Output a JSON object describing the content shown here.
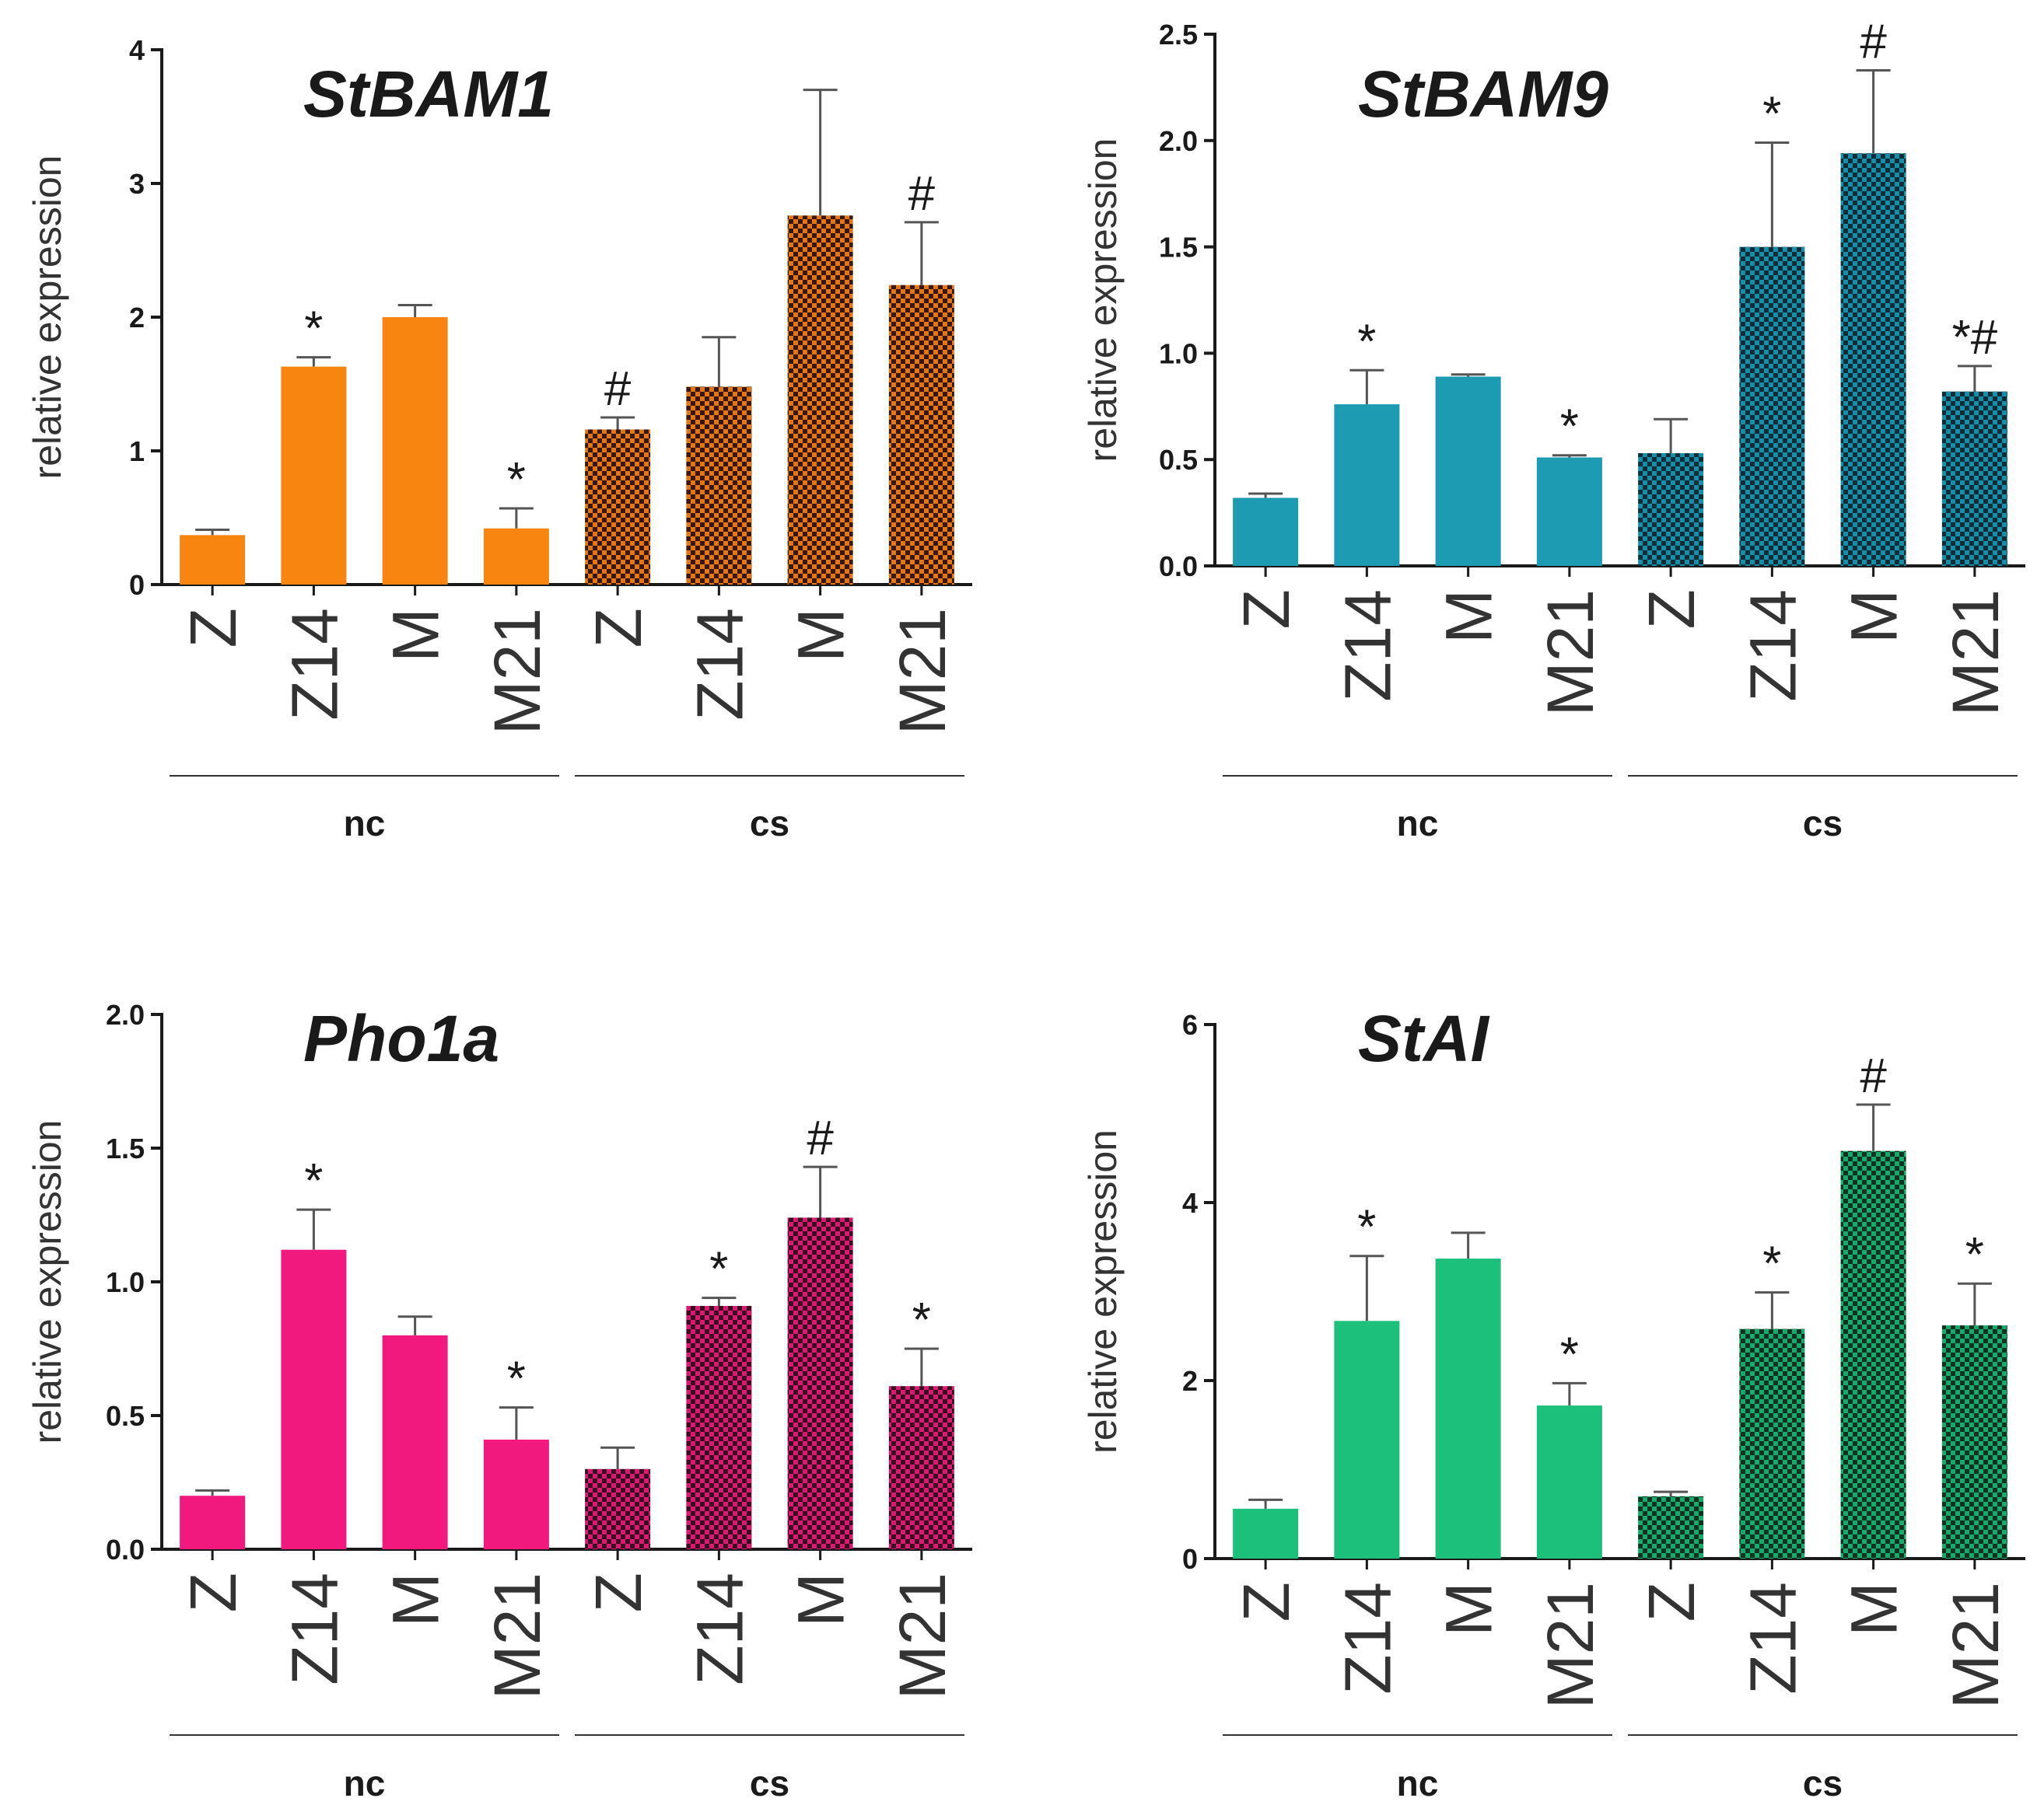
{
  "chart_data": [
    {
      "type": "bar",
      "title": "StBAM1",
      "ylabel": "relative expression",
      "ylim": [
        0,
        4
      ],
      "yticks": [
        "0",
        "1",
        "2",
        "3",
        "4"
      ],
      "categories": [
        "Z",
        "Z14",
        "M",
        "M21",
        "Z",
        "Z14",
        "M",
        "M21"
      ],
      "groups": [
        {
          "label": "nc",
          "span": [
            0,
            3
          ]
        },
        {
          "label": "cs",
          "span": [
            4,
            7
          ]
        }
      ],
      "values": [
        0.37,
        1.63,
        2.0,
        0.42,
        1.16,
        1.48,
        2.76,
        2.24
      ],
      "errors": [
        0.04,
        0.07,
        0.09,
        0.15,
        0.09,
        0.37,
        0.94,
        0.47
      ],
      "annotations": [
        "",
        "*",
        "",
        "*",
        "#",
        "",
        "",
        "#"
      ],
      "colors": {
        "nc": "#f7850f",
        "cs_fill": "#e0771a",
        "cs_check": "#3a1808"
      }
    },
    {
      "type": "bar",
      "title": "StBAM9",
      "ylabel": "relative expression",
      "ylim": [
        0,
        2.5
      ],
      "yticks": [
        "0.0",
        "0.5",
        "1.0",
        "1.5",
        "2.0",
        "2.5"
      ],
      "categories": [
        "Z",
        "Z14",
        "M",
        "M21",
        "Z",
        "Z14",
        "M",
        "M21"
      ],
      "groups": [
        {
          "label": "nc",
          "span": [
            0,
            3
          ]
        },
        {
          "label": "cs",
          "span": [
            4,
            7
          ]
        }
      ],
      "values": [
        0.32,
        0.76,
        0.89,
        0.51,
        0.53,
        1.5,
        1.94,
        0.82
      ],
      "errors": [
        0.02,
        0.16,
        0.01,
        0.01,
        0.16,
        0.49,
        0.39,
        0.12
      ],
      "annotations": [
        "",
        "*",
        "",
        "*",
        "",
        "*",
        "#",
        "*#"
      ],
      "colors": {
        "nc": "#1d9bb3",
        "cs_fill": "#1a8ea6",
        "cs_check": "#0b2e38"
      }
    },
    {
      "type": "bar",
      "title": "Pho1a",
      "ylabel": "relative expression",
      "ylim": [
        0,
        2.0
      ],
      "yticks": [
        "0.0",
        "0.5",
        "1.0",
        "1.5",
        "2.0"
      ],
      "categories": [
        "Z",
        "Z14",
        "M",
        "M21",
        "Z",
        "Z14",
        "M",
        "M21"
      ],
      "groups": [
        {
          "label": "nc",
          "span": [
            0,
            3
          ]
        },
        {
          "label": "cs",
          "span": [
            4,
            7
          ]
        }
      ],
      "values": [
        0.2,
        1.12,
        0.8,
        0.41,
        0.3,
        0.91,
        1.24,
        0.61
      ],
      "errors": [
        0.02,
        0.15,
        0.07,
        0.12,
        0.08,
        0.03,
        0.19,
        0.14
      ],
      "annotations": [
        "",
        "*",
        "",
        "*",
        "",
        "*",
        "#",
        "*"
      ],
      "colors": {
        "nc": "#f2197e",
        "cs_fill": "#d81b6e",
        "cs_check": "#3b0a22"
      }
    },
    {
      "type": "bar",
      "title": "StAI",
      "ylabel": "relative expression",
      "ylim": [
        0,
        6
      ],
      "yticks": [
        "0",
        "2",
        "4",
        "6"
      ],
      "categories": [
        "Z",
        "Z14",
        "M",
        "M21",
        "Z",
        "Z14",
        "M",
        "M21"
      ],
      "groups": [
        {
          "label": "nc",
          "span": [
            0,
            3
          ]
        },
        {
          "label": "cs",
          "span": [
            4,
            7
          ]
        }
      ],
      "values": [
        0.56,
        2.67,
        3.37,
        1.72,
        0.7,
        2.58,
        4.58,
        2.62
      ],
      "errors": [
        0.1,
        0.73,
        0.29,
        0.25,
        0.05,
        0.41,
        0.52,
        0.47
      ],
      "annotations": [
        "",
        "*",
        "",
        "*",
        "",
        "*",
        "#",
        "*"
      ],
      "colors": {
        "nc": "#1cc07a",
        "cs_fill": "#1aa86c",
        "cs_check": "#0a3320"
      }
    }
  ]
}
